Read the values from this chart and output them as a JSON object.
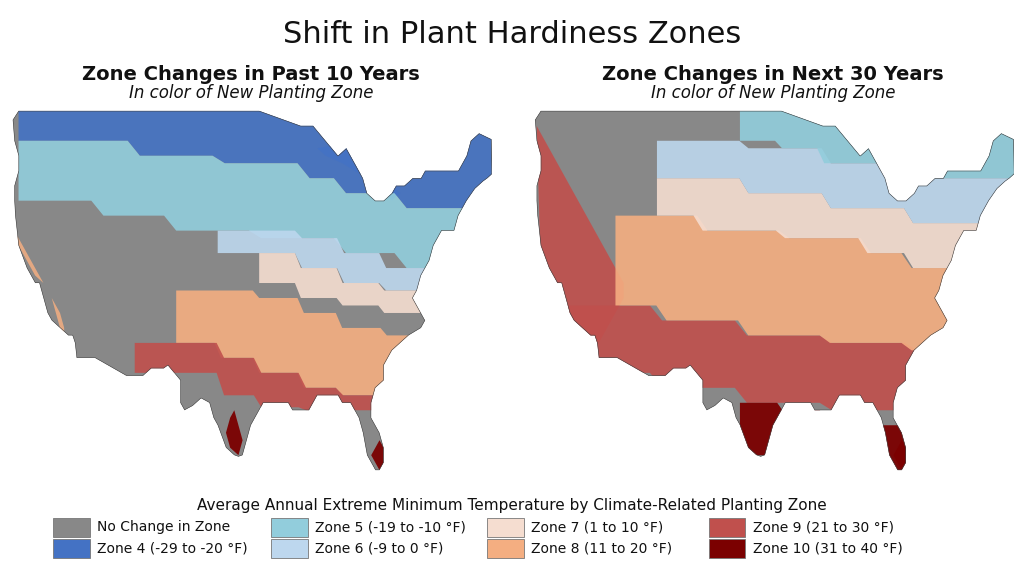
{
  "title": "Shift in Plant Hardiness Zones",
  "title_fontsize": 22,
  "subtitle_left1": "Zone Changes in Past 10 Years",
  "subtitle_left2": "In color of New Planting Zone",
  "subtitle_right1": "Zone Changes in Next 30 Years",
  "subtitle_right2": "In color of New Planting Zone",
  "subtitle_fontsize": 14,
  "subtitle2_fontsize": 12,
  "legend_title": "Average Annual Extreme Minimum Temperature by Climate-Related Planting Zone",
  "legend_title_fontsize": 11,
  "legend_items_row1": [
    {
      "label": "No Change in Zone",
      "color": "#888888"
    },
    {
      "label": "Zone 5 (-19 to -10 °F)",
      "color": "#92CDDC"
    },
    {
      "label": "Zone 7 (1 to 10 °F)",
      "color": "#F5DDD0"
    },
    {
      "label": "Zone 9 (21 to 30 °F)",
      "color": "#C0504D"
    }
  ],
  "legend_items_row2": [
    {
      "label": "Zone 4 (-29 to -20 °F)",
      "color": "#4472C4"
    },
    {
      "label": "Zone 6 (-9 to 0 °F)",
      "color": "#BDD7EE"
    },
    {
      "label": "Zone 8 (11 to 20 °F)",
      "color": "#F4AE81"
    },
    {
      "label": "Zone 10 (31 to 40 °F)",
      "color": "#7B0000"
    }
  ],
  "legend_fontsize": 10,
  "background_color": "#FFFFFF",
  "gray": "#888888",
  "z4": "#4472C4",
  "z5": "#92CDDC",
  "z6": "#BDD7EE",
  "z7": "#F5DDD0",
  "z8": "#F4AE81",
  "z9": "#C0504D",
  "z10": "#7B0000"
}
